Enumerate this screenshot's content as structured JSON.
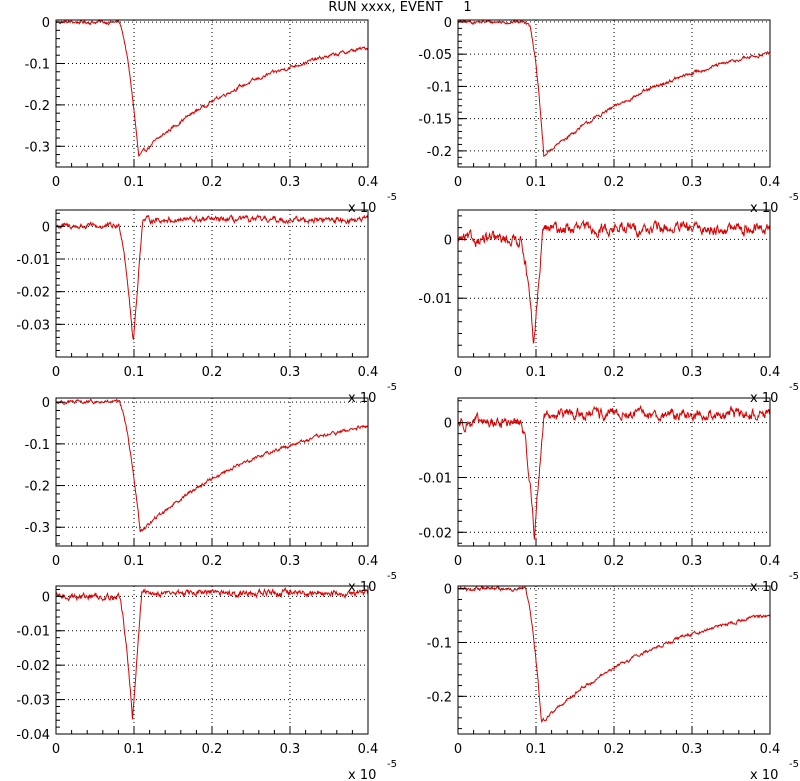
{
  "title": "RUN xxxx, EVENT     1",
  "colors": {
    "trace": "#dd0000",
    "axis": "#000000",
    "grid": "#000000",
    "background": "#ffffff"
  },
  "chart_data": [
    {
      "type": "line",
      "xlim": [
        0,
        0.4
      ],
      "ylim": [
        -0.35,
        0.005
      ],
      "xticks": [
        0,
        0.1,
        0.2,
        0.3,
        0.4
      ],
      "xtick_labels": [
        "0",
        "0.1",
        "0.2",
        "0.3",
        "0.4"
      ],
      "yticks": [
        0,
        -0.1,
        -0.2,
        -0.3
      ],
      "ytick_labels": [
        "0",
        "-0.1",
        "-0.2",
        "-0.3"
      ],
      "x_scale_label": "x 10",
      "x_scale_exponent": "-5",
      "grid": true,
      "series": [
        {
          "shape": "slow",
          "start": 0.08,
          "tmin": 0.106,
          "min": -0.325,
          "end": -0.062,
          "noise": 0.004
        }
      ]
    },
    {
      "type": "line",
      "xlim": [
        0,
        0.4
      ],
      "ylim": [
        -0.225,
        0.003
      ],
      "xticks": [
        0,
        0.1,
        0.2,
        0.3,
        0.4
      ],
      "xtick_labels": [
        "0",
        "0.1",
        "0.2",
        "0.3",
        "0.4"
      ],
      "yticks": [
        0,
        -0.05,
        -0.1,
        -0.15,
        -0.2
      ],
      "ytick_labels": [
        "0",
        "-0.05",
        "-0.1",
        "-0.15",
        "-0.2"
      ],
      "x_scale_label": "x 10",
      "x_scale_exponent": "-5",
      "grid": true,
      "series": [
        {
          "shape": "slow",
          "start": 0.09,
          "tmin": 0.11,
          "min": -0.208,
          "end": -0.048,
          "noise": 0.0025
        }
      ]
    },
    {
      "type": "line",
      "xlim": [
        0,
        0.4
      ],
      "ylim": [
        -0.04,
        0.005
      ],
      "xticks": [
        0,
        0.1,
        0.2,
        0.3,
        0.4
      ],
      "xtick_labels": [
        "0",
        "0.1",
        "0.2",
        "0.3",
        "0.4"
      ],
      "yticks": [
        0,
        -0.01,
        -0.02,
        -0.03
      ],
      "ytick_labels": [
        "0",
        "-0.01",
        "-0.02",
        "-0.03"
      ],
      "x_scale_label": "x 10",
      "x_scale_exponent": "-5",
      "grid": true,
      "series": [
        {
          "shape": "fast",
          "start": 0.08,
          "tmin": 0.099,
          "min": -0.036,
          "end": 0.002,
          "noise": 0.0008
        }
      ]
    },
    {
      "type": "line",
      "xlim": [
        0,
        0.4
      ],
      "ylim": [
        -0.02,
        0.005
      ],
      "xticks": [
        0,
        0.1,
        0.2,
        0.3,
        0.4
      ],
      "xtick_labels": [
        "0",
        "0.1",
        "0.2",
        "0.3",
        "0.4"
      ],
      "yticks": [
        0,
        -0.01
      ],
      "ytick_labels": [
        "0",
        "-0.01"
      ],
      "x_scale_label": "x 10",
      "x_scale_exponent": "-5",
      "grid": true,
      "series": [
        {
          "shape": "fast",
          "start": 0.08,
          "tmin": 0.097,
          "min": -0.0185,
          "end": 0.0018,
          "noise": 0.0009
        }
      ]
    },
    {
      "type": "line",
      "xlim": [
        0,
        0.4
      ],
      "ylim": [
        -0.345,
        0.01
      ],
      "xticks": [
        0,
        0.1,
        0.2,
        0.3,
        0.4
      ],
      "xtick_labels": [
        "0",
        "0.1",
        "0.2",
        "0.3",
        "0.4"
      ],
      "yticks": [
        0,
        -0.1,
        -0.2,
        -0.3
      ],
      "ytick_labels": [
        "0",
        "-0.1",
        "-0.2",
        "-0.3"
      ],
      "x_scale_label": "x 10",
      "x_scale_exponent": "-5",
      "grid": true,
      "series": [
        {
          "shape": "slow",
          "start": 0.08,
          "tmin": 0.108,
          "min": -0.312,
          "end": -0.058,
          "noise": 0.004
        }
      ]
    },
    {
      "type": "line",
      "xlim": [
        0,
        0.4
      ],
      "ylim": [
        -0.0225,
        0.0045
      ],
      "xticks": [
        0,
        0.1,
        0.2,
        0.3,
        0.4
      ],
      "xtick_labels": [
        "0",
        "0.1",
        "0.2",
        "0.3",
        "0.4"
      ],
      "yticks": [
        0,
        -0.01,
        -0.02
      ],
      "ytick_labels": [
        "0",
        "-0.01",
        "-0.02"
      ],
      "x_scale_label": "x 10",
      "x_scale_exponent": "-5",
      "grid": true,
      "series": [
        {
          "shape": "fast",
          "start": 0.08,
          "tmin": 0.098,
          "min": -0.0205,
          "end": 0.0015,
          "noise": 0.0009
        }
      ]
    },
    {
      "type": "line",
      "xlim": [
        0,
        0.4
      ],
      "ylim": [
        -0.04,
        0.003
      ],
      "xticks": [
        0,
        0.1,
        0.2,
        0.3,
        0.4
      ],
      "xtick_labels": [
        "0",
        "0.1",
        "0.2",
        "0.3",
        "0.4"
      ],
      "yticks": [
        0,
        -0.01,
        -0.02,
        -0.03,
        -0.04
      ],
      "ytick_labels": [
        "0",
        "-0.01",
        "-0.02",
        "-0.03",
        "-0.04"
      ],
      "x_scale_label": "x 10",
      "x_scale_exponent": "-5",
      "grid": true,
      "series": [
        {
          "shape": "fast",
          "start": 0.08,
          "tmin": 0.098,
          "min": -0.036,
          "end": 0.001,
          "noise": 0.0008
        }
      ]
    },
    {
      "type": "line",
      "xlim": [
        0,
        0.4
      ],
      "ylim": [
        -0.27,
        0.005
      ],
      "xticks": [
        0,
        0.1,
        0.2,
        0.3,
        0.4
      ],
      "xtick_labels": [
        "0",
        "0.1",
        "0.2",
        "0.3",
        "0.4"
      ],
      "yticks": [
        0,
        -0.1,
        -0.2
      ],
      "ytick_labels": [
        "0",
        "-0.1",
        "-0.2"
      ],
      "x_scale_label": "x 10",
      "x_scale_exponent": "-5",
      "grid": true,
      "series": [
        {
          "shape": "slow",
          "start": 0.085,
          "tmin": 0.107,
          "min": -0.248,
          "end": -0.048,
          "noise": 0.003
        }
      ]
    }
  ]
}
